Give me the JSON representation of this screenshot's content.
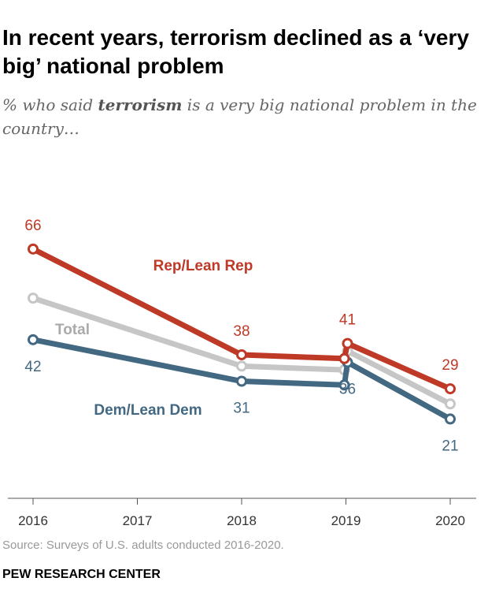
{
  "title": "In recent years, terrorism declined as a ‘very big’ national problem",
  "subtitle_pre": "% who said ",
  "subtitle_bold": "terrorism",
  "subtitle_post": " is a very big national problem in the country…",
  "source": "Source: Surveys of U.S. adults conducted 2016-2020.",
  "brand": "PEW RESEARCH CENTER",
  "chart_data": {
    "type": "line",
    "x_ticks": [
      "2016",
      "2017",
      "2018",
      "2019",
      "2020"
    ],
    "ylim": [
      0,
      70
    ],
    "grid": false,
    "series": [
      {
        "name": "Total",
        "color": "#c6c6c6",
        "x": [
          2016,
          2018,
          2019,
          2019,
          2020
        ],
        "values": [
          53,
          35,
          34,
          39,
          25
        ],
        "labels": [
          null,
          null,
          null,
          null,
          null
        ]
      },
      {
        "name": "Dem/Lean Dem",
        "color": "#436882",
        "x": [
          2016,
          2018,
          2019,
          2019,
          2020
        ],
        "values": [
          42,
          31,
          30,
          36,
          21
        ],
        "labels": [
          "42",
          "31",
          null,
          "36",
          "21"
        ]
      },
      {
        "name": "Rep/Lean Rep",
        "color": "#bf3927",
        "x": [
          2016,
          2018,
          2019,
          2019,
          2020
        ],
        "values": [
          66,
          38,
          37,
          41,
          29
        ],
        "labels": [
          "66",
          "38",
          null,
          "41",
          "29"
        ]
      }
    ]
  }
}
